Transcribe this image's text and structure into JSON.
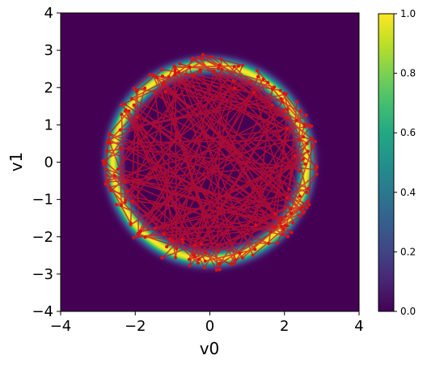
{
  "chart_data": {
    "type": "heatmap",
    "title": "",
    "xlabel": "v0",
    "ylabel": "v1",
    "xlim": [
      -4,
      4
    ],
    "ylim": [
      -4,
      4
    ],
    "x_ticks": [
      "−4",
      "−2",
      "0",
      "2",
      "4"
    ],
    "y_ticks": [
      "−4",
      "−3",
      "−2",
      "−1",
      "0",
      "1",
      "2",
      "3",
      "4"
    ],
    "grid": false,
    "colormap": "viridis",
    "density": {
      "description_values": "ring density, peak value on circle",
      "ring_radius": 2.6,
      "ring_width": 0.13,
      "vmin": 0.0,
      "vmax": 1.0
    },
    "colorbar": {
      "ticks": [
        "0.0",
        "0.2",
        "0.4",
        "0.6",
        "0.8",
        "1.0"
      ],
      "tick_values": [
        0.0,
        0.2,
        0.4,
        0.6,
        0.8,
        1.0
      ]
    },
    "trajectory": {
      "color": "#c8102e",
      "point_count": 200,
      "radius_range": [
        2.0,
        2.9
      ]
    }
  }
}
